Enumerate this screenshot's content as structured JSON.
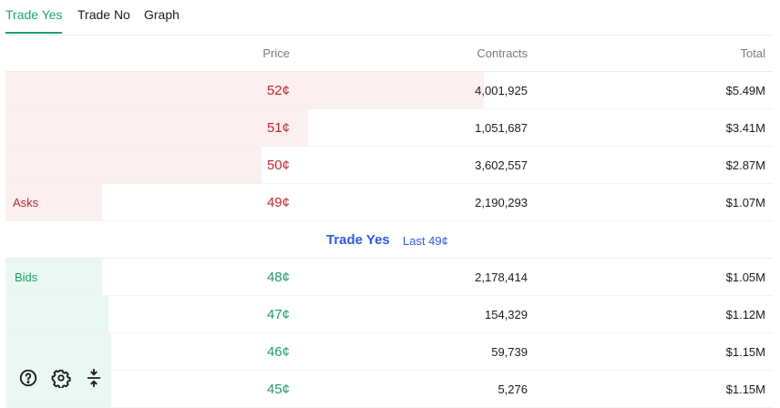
{
  "tabs": [
    {
      "label": "Trade Yes",
      "active": true
    },
    {
      "label": "Trade No",
      "active": false
    },
    {
      "label": "Graph",
      "active": false
    }
  ],
  "columns": {
    "price": "Price",
    "contracts": "Contracts",
    "total": "Total"
  },
  "asks": {
    "label": "Asks",
    "rows": [
      {
        "price": "52¢",
        "contracts": "4,001,925",
        "total": "$5.49M"
      },
      {
        "price": "51¢",
        "contracts": "1,051,687",
        "total": "$3.41M"
      },
      {
        "price": "50¢",
        "contracts": "3,602,557",
        "total": "$2.87M"
      },
      {
        "price": "49¢",
        "contracts": "2,190,293",
        "total": "$1.07M"
      }
    ]
  },
  "spread": {
    "title": "Trade Yes",
    "last": "Last 49¢"
  },
  "bids": {
    "label": "Bids",
    "rows": [
      {
        "price": "48¢",
        "contracts": "2,178,414",
        "total": "$1.05M"
      },
      {
        "price": "47¢",
        "contracts": "154,329",
        "total": "$1.12M"
      },
      {
        "price": "46¢",
        "contracts": "59,739",
        "total": "$1.15M"
      },
      {
        "price": "45¢",
        "contracts": "5,276",
        "total": "$1.15M"
      }
    ]
  },
  "toolbar": {
    "icons": [
      "help-icon",
      "settings-icon",
      "collapse-icon"
    ]
  },
  "colors": {
    "accent_green": "#1aa37a",
    "ask_red": "#c0272d",
    "bid_green": "#1e9a6a",
    "link_blue": "#2d5be3"
  }
}
